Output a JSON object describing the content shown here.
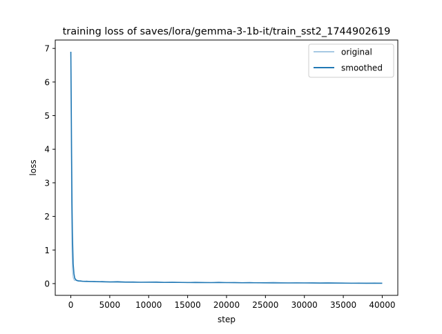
{
  "chart_data": {
    "type": "line",
    "title": "training loss of saves/lora/gemma-3-1b-it/train_sst2_1744902619",
    "xlabel": "step",
    "ylabel": "loss",
    "xlim": [
      -2000,
      42000
    ],
    "ylim": [
      -0.35,
      7.25
    ],
    "xticks": [
      0,
      5000,
      10000,
      15000,
      20000,
      25000,
      30000,
      35000,
      40000
    ],
    "xtick_labels": [
      "0",
      "5000",
      "10000",
      "15000",
      "20000",
      "25000",
      "30000",
      "35000",
      "40000"
    ],
    "yticks": [
      0,
      1,
      2,
      3,
      4,
      5,
      6,
      7
    ],
    "ytick_labels": [
      "0",
      "1",
      "2",
      "3",
      "4",
      "5",
      "6",
      "7"
    ],
    "grid": false,
    "legend_position": "top-right",
    "series": [
      {
        "name": "original",
        "color": "#a6c8e3",
        "x": [
          0,
          50,
          100,
          150,
          200,
          300,
          400,
          500,
          600,
          800,
          1000,
          1200,
          1500,
          1800,
          2000,
          2500,
          3000,
          3500,
          4000,
          4500,
          5000,
          6000,
          7000,
          8000,
          9000,
          10000,
          11000,
          12000,
          13000,
          14000,
          15000,
          16000,
          17000,
          18000,
          19000,
          20000,
          21000,
          22000,
          23000,
          24000,
          25000,
          26000,
          27000,
          28000,
          29000,
          30000,
          31000,
          32000,
          33000,
          34000,
          35000,
          36000,
          37000,
          38000,
          39000,
          40000
        ],
        "y": [
          6.9,
          4.6,
          2.2,
          1.0,
          0.42,
          0.18,
          0.12,
          0.09,
          0.11,
          0.08,
          0.07,
          0.09,
          0.07,
          0.06,
          0.08,
          0.06,
          0.07,
          0.05,
          0.07,
          0.06,
          0.05,
          0.07,
          0.05,
          0.06,
          0.04,
          0.05,
          0.06,
          0.04,
          0.05,
          0.04,
          0.03,
          0.05,
          0.04,
          0.03,
          0.05,
          0.03,
          0.04,
          0.03,
          0.04,
          0.02,
          0.03,
          0.04,
          0.03,
          0.02,
          0.03,
          0.02,
          0.03,
          0.02,
          0.03,
          0.02,
          0.02,
          0.01,
          0.02,
          0.01,
          0.02,
          0.01
        ]
      },
      {
        "name": "smoothed",
        "color": "#1f77b4",
        "x": [
          0,
          50,
          100,
          150,
          200,
          300,
          400,
          500,
          700,
          1000,
          1500,
          2000,
          3000,
          4000,
          5000,
          6000,
          7000,
          8000,
          10000,
          12000,
          14000,
          16000,
          18000,
          20000,
          22000,
          24000,
          26000,
          28000,
          30000,
          32000,
          34000,
          36000,
          38000,
          40000
        ],
        "y": [
          6.9,
          5.5,
          3.8,
          2.4,
          1.5,
          0.6,
          0.3,
          0.16,
          0.1,
          0.08,
          0.07,
          0.065,
          0.06,
          0.055,
          0.05,
          0.05,
          0.045,
          0.04,
          0.04,
          0.035,
          0.035,
          0.03,
          0.03,
          0.03,
          0.025,
          0.025,
          0.02,
          0.02,
          0.02,
          0.015,
          0.015,
          0.012,
          0.01,
          0.01
        ]
      }
    ]
  }
}
